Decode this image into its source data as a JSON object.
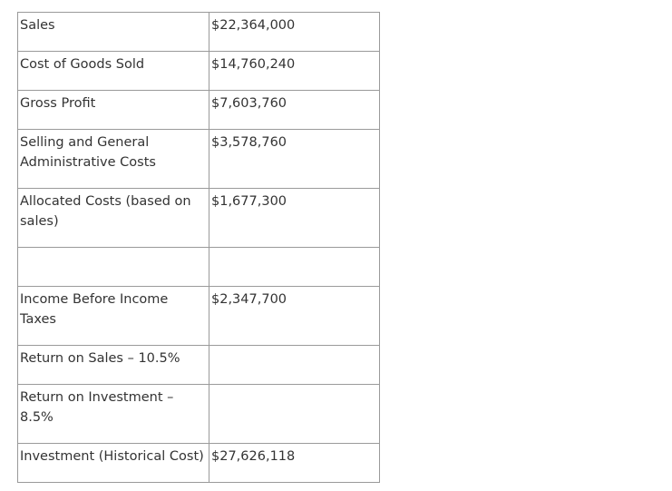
{
  "table": {
    "rows": [
      {
        "label": "Sales",
        "value": "$22,364,000"
      },
      {
        "label": "Cost of Goods Sold",
        "value": "$14,760,240"
      },
      {
        "label": "Gross Profit",
        "value": "$7,603,760"
      },
      {
        "label": "Selling and General Administrative Costs",
        "value": "$3,578,760"
      },
      {
        "label": "Allocated Costs (based on sales)",
        "value": "$1,677,300"
      },
      {
        "label": "",
        "value": ""
      },
      {
        "label": "Income Before Income Taxes",
        "value": "$2,347,700"
      },
      {
        "label": "Return on Sales – 10.5%",
        "value": ""
      },
      {
        "label": "Return on Investment – 8.5%",
        "value": ""
      },
      {
        "label": "Investment (Historical Cost)",
        "value": "$27,626,118"
      }
    ]
  }
}
